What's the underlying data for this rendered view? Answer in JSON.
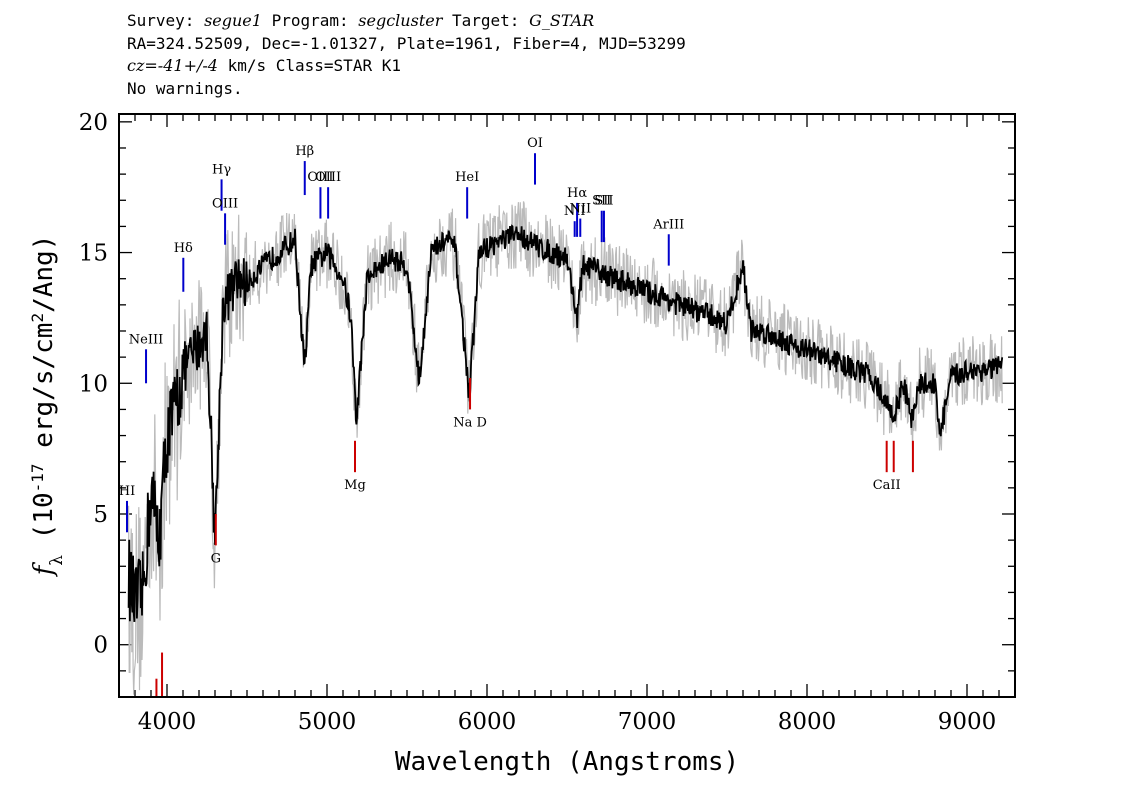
{
  "header": {
    "survey_label": "Survey:",
    "survey": "segue1",
    "program_label": "Program:",
    "program": "segcluster",
    "target_label": "Target:",
    "target": "G_STAR",
    "line2": "RA=324.52509, Dec=-1.01327, Plate=1961, Fiber=4, MJD=53299",
    "cz": "cz=-41+/-4",
    "cz_rest": " km/s Class=STAR K1",
    "warnings": "No warnings."
  },
  "chart_data": {
    "type": "line",
    "xlabel": "Wavelength (Angstroms)",
    "ylabel": "f_λ (10^-17 erg/s/cm^2/Ang)",
    "xlim": [
      3700,
      9300
    ],
    "ylim": [
      -2,
      20.3
    ],
    "xticks": [
      "4000",
      "5000",
      "6000",
      "7000",
      "8000",
      "9000"
    ],
    "yticks": [
      "0",
      "5",
      "10",
      "15",
      "20"
    ],
    "colors": {
      "flux": "#000000",
      "error": "#bbbbbb",
      "emission": "#0000cc",
      "absorption": "#cc0000"
    },
    "series": [
      {
        "name": "flux",
        "x": [
          3750,
          3800,
          3850,
          3900,
          3950,
          4000,
          4050,
          4100,
          4150,
          4200,
          4250,
          4300,
          4350,
          4400,
          4450,
          4500,
          4600,
          4700,
          4800,
          4860,
          4900,
          5000,
          5100,
          5150,
          5183,
          5250,
          5300,
          5400,
          5500,
          5577,
          5650,
          5750,
          5800,
          5890,
          5950,
          6000,
          6100,
          6200,
          6300,
          6400,
          6500,
          6563,
          6600,
          6700,
          6800,
          6900,
          7000,
          7100,
          7200,
          7300,
          7400,
          7500,
          7600,
          7650,
          7700,
          7800,
          7900,
          8000,
          8100,
          8200,
          8300,
          8400,
          8498,
          8542,
          8600,
          8662,
          8700,
          8800,
          8830,
          8900,
          9000,
          9100,
          9200
        ],
        "y": [
          3.0,
          1.5,
          2.0,
          6.0,
          4.0,
          8.0,
          9.0,
          10.5,
          11.0,
          11.5,
          12.0,
          4.0,
          13.0,
          13.5,
          14.0,
          13.8,
          14.5,
          15.0,
          15.5,
          10.5,
          14.5,
          15.0,
          14.0,
          12.5,
          8.5,
          14.0,
          14.3,
          14.8,
          14.5,
          10.0,
          15.0,
          15.5,
          15.2,
          9.5,
          15.0,
          15.2,
          15.5,
          15.7,
          15.3,
          15.0,
          14.8,
          12.5,
          14.5,
          14.3,
          14.0,
          13.8,
          13.5,
          13.3,
          13.0,
          12.8,
          12.6,
          12.3,
          14.5,
          12.0,
          12.0,
          11.8,
          11.5,
          11.3,
          11.0,
          10.8,
          10.5,
          10.3,
          9.2,
          8.7,
          10.0,
          8.5,
          10.0,
          10.0,
          8.0,
          10.2,
          10.5,
          10.5,
          10.6
        ]
      }
    ],
    "spectral_lines": [
      {
        "label": "HI",
        "x": 3750,
        "y_top": 5.5,
        "y_bottom": 4.3,
        "kind": "emission"
      },
      {
        "label": "NeIII",
        "x": 3869,
        "y_top": 11.3,
        "y_bottom": 10.0,
        "kind": "emission"
      },
      {
        "label": "Hδ",
        "x": 4102,
        "y_top": 14.8,
        "y_bottom": 13.5,
        "kind": "emission"
      },
      {
        "label": "Hγ",
        "x": 4341,
        "y_top": 17.8,
        "y_bottom": 16.6,
        "kind": "emission"
      },
      {
        "label": "OIII",
        "x": 4363,
        "y_top": 16.5,
        "y_bottom": 15.3,
        "kind": "emission"
      },
      {
        "label": "Hβ",
        "x": 4861,
        "y_top": 18.5,
        "y_bottom": 17.2,
        "kind": "emission"
      },
      {
        "label": "OIII",
        "x": 4959,
        "y_top": 17.5,
        "y_bottom": 16.3,
        "kind": "emission"
      },
      {
        "label": "OIII",
        "x": 5007,
        "y_top": 17.5,
        "y_bottom": 16.3,
        "kind": "emission"
      },
      {
        "label": "HeI",
        "x": 5876,
        "y_top": 17.5,
        "y_bottom": 16.3,
        "kind": "emission"
      },
      {
        "label": "OI",
        "x": 6300,
        "y_top": 18.8,
        "y_bottom": 17.6,
        "kind": "emission"
      },
      {
        "label": "NII",
        "x": 6548,
        "y_top": 16.2,
        "y_bottom": 15.6,
        "kind": "emission"
      },
      {
        "label": "Hα",
        "x": 6563,
        "y_top": 16.9,
        "y_bottom": 15.6,
        "kind": "emission"
      },
      {
        "label": "NII",
        "x": 6583,
        "y_top": 16.3,
        "y_bottom": 15.6,
        "kind": "emission"
      },
      {
        "label": "SII",
        "x": 6717,
        "y_top": 16.6,
        "y_bottom": 15.4,
        "kind": "emission"
      },
      {
        "label": "SII",
        "x": 6731,
        "y_top": 16.6,
        "y_bottom": 15.4,
        "kind": "emission"
      },
      {
        "label": "ArIII",
        "x": 7136,
        "y_top": 15.7,
        "y_bottom": 14.5,
        "kind": "emission"
      },
      {
        "label": "",
        "x": 3934,
        "y_top": -1.3,
        "y_bottom": -2.0,
        "kind": "absorption"
      },
      {
        "label": "",
        "x": 3969,
        "y_top": -0.3,
        "y_bottom": -2.0,
        "kind": "absorption"
      },
      {
        "label": "G",
        "x": 4305,
        "y_top": 5.0,
        "y_bottom": 3.8,
        "kind": "absorption"
      },
      {
        "label": "Mg",
        "x": 5175,
        "y_top": 7.8,
        "y_bottom": 6.6,
        "kind": "absorption"
      },
      {
        "label": "Na D",
        "x": 5894,
        "y_top": 10.2,
        "y_bottom": 9.0,
        "kind": "absorption"
      },
      {
        "label": "CaII",
        "x": 8498,
        "y_top": 7.8,
        "y_bottom": 6.6,
        "kind": "absorption"
      },
      {
        "label": "",
        "x": 8542,
        "y_top": 7.8,
        "y_bottom": 6.6,
        "kind": "absorption"
      },
      {
        "label": "",
        "x": 8662,
        "y_top": 7.8,
        "y_bottom": 6.6,
        "kind": "absorption"
      }
    ]
  }
}
